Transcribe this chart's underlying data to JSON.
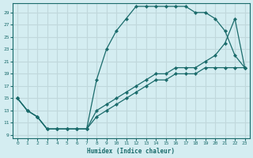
{
  "xlabel": "Humidex (Indice chaleur)",
  "xlim": [
    -0.5,
    23.5
  ],
  "ylim": [
    8.5,
    30.5
  ],
  "yticks": [
    9,
    11,
    13,
    15,
    17,
    19,
    21,
    23,
    25,
    27,
    29
  ],
  "xticks": [
    0,
    1,
    2,
    3,
    4,
    5,
    6,
    7,
    8,
    9,
    10,
    11,
    12,
    13,
    14,
    15,
    16,
    17,
    18,
    19,
    20,
    21,
    22,
    23
  ],
  "background_color": "#d4edf1",
  "grid_color": "#c0d8dc",
  "line_color": "#1a6b6b",
  "line1_x": [
    0,
    1,
    2,
    3,
    4,
    5,
    6,
    7,
    8,
    9,
    10,
    11,
    12,
    13,
    14,
    15,
    16,
    17,
    18,
    19,
    20,
    21,
    22,
    23
  ],
  "line1_y": [
    15,
    13,
    12,
    10,
    10,
    10,
    10,
    10,
    18,
    23,
    26,
    28,
    30,
    30,
    30,
    30,
    30,
    30,
    29,
    29,
    28,
    26,
    22,
    20
  ],
  "line2_x": [
    0,
    1,
    2,
    3,
    4,
    5,
    6,
    7,
    8,
    9,
    10,
    11,
    12,
    13,
    14,
    15,
    16,
    17,
    18,
    19,
    20,
    21,
    22,
    23
  ],
  "line2_y": [
    15,
    13,
    12,
    10,
    10,
    10,
    10,
    10,
    13,
    14,
    15,
    16,
    17,
    18,
    19,
    19,
    20,
    20,
    20,
    21,
    22,
    24,
    28,
    20
  ],
  "line3_x": [
    0,
    1,
    2,
    3,
    4,
    5,
    6,
    7,
    8,
    9,
    10,
    11,
    12,
    13,
    14,
    15,
    16,
    17,
    18,
    19,
    20,
    21,
    22,
    23
  ],
  "line3_y": [
    15,
    13,
    12,
    10,
    10,
    10,
    10,
    10,
    12,
    13,
    14,
    15,
    16,
    17,
    18,
    18,
    19,
    19,
    19,
    20,
    20,
    20,
    20,
    20
  ]
}
